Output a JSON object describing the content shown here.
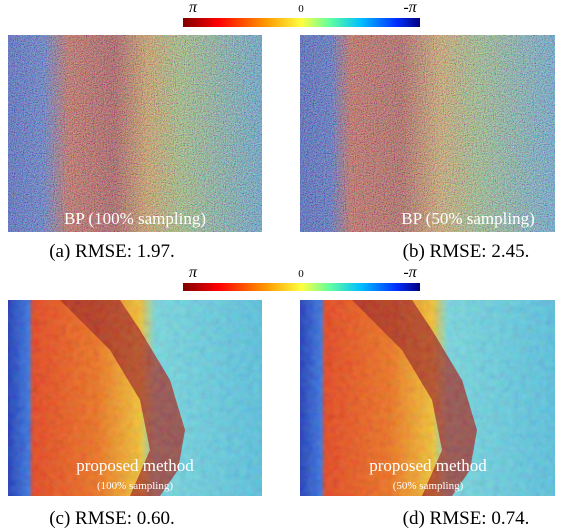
{
  "figure": {
    "colorbars": [
      {
        "left": "π",
        "center": "0",
        "right": "-π"
      },
      {
        "left": "π",
        "center": "0",
        "right": "-π"
      }
    ],
    "panels": [
      {
        "overlay": "BP (100% sampling)",
        "caption": "(a) RMSE: 1.97."
      },
      {
        "overlay": "BP (50% sampling)",
        "caption": "(b) RMSE: 2.45."
      },
      {
        "overlay": "proposed method",
        "overlay_sub": "(100% sampling)",
        "caption": "(c) RMSE: 0.60."
      },
      {
        "overlay": "proposed method",
        "overlay_sub": "(50% sampling)",
        "caption": "(d) RMSE: 0.74."
      }
    ]
  }
}
